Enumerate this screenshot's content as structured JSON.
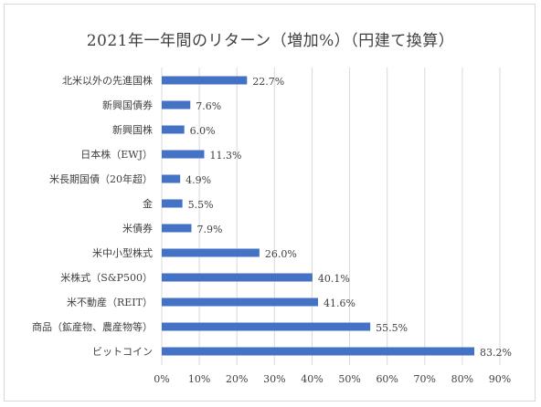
{
  "chart_data": {
    "type": "bar",
    "orientation": "horizontal",
    "title": "2021年一年間のリターン（増加%）（円建て換算）",
    "categories": [
      "北米以外の先進国株",
      "新興国債券",
      "新興国株",
      "日本株（EWJ）",
      "米長期国債（20年超）",
      "金",
      "米債券",
      "米中小型株式",
      "米株式（S&P500）",
      "米不動産（REIT）",
      "商品（鉱産物、農産物等）",
      "ビットコイン"
    ],
    "values": [
      22.7,
      7.6,
      6.0,
      11.3,
      4.9,
      5.5,
      7.9,
      26.0,
      40.1,
      41.6,
      55.5,
      83.2
    ],
    "value_labels": [
      "22.7%",
      "7.6%",
      "6.0%",
      "11.3%",
      "4.9%",
      "5.5%",
      "7.9%",
      "26.0%",
      "40.1%",
      "41.6%",
      "55.5%",
      "83.2%"
    ],
    "xlim": [
      0,
      90
    ],
    "x_ticks": [
      "0%",
      "10%",
      "20%",
      "30%",
      "40%",
      "50%",
      "60%",
      "70%",
      "80%",
      "90%"
    ],
    "grid": "vertical",
    "bar_color": "#4472c4",
    "grid_color": "#d9d9d9",
    "text_color": "#404040"
  }
}
